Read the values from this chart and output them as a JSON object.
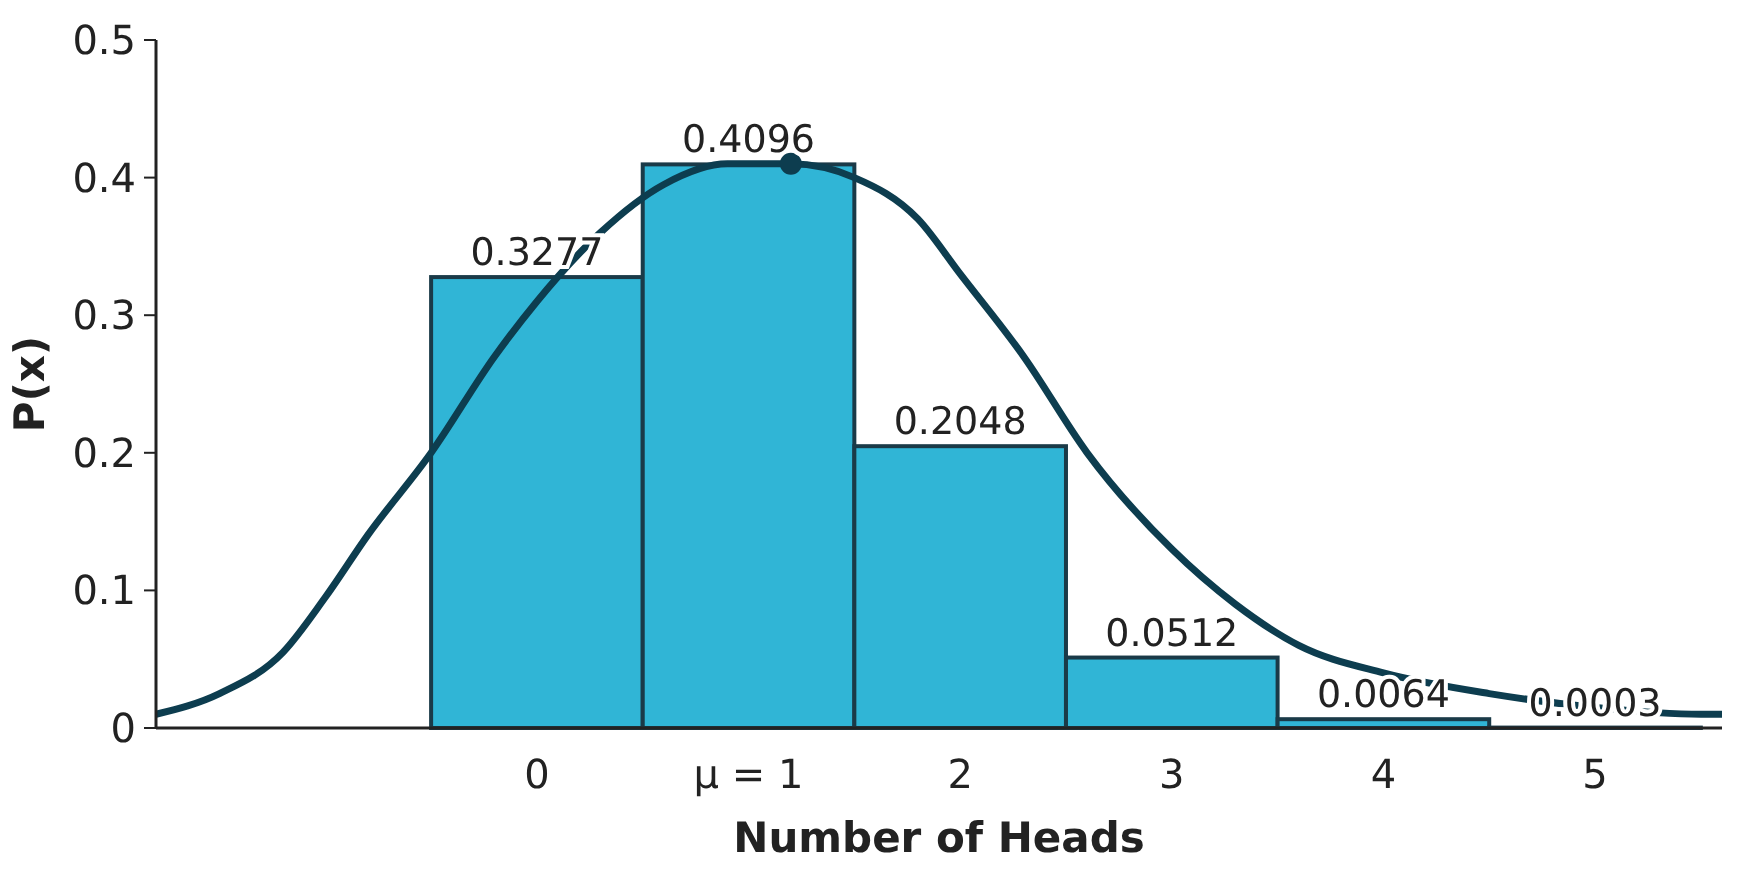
{
  "chart_data": {
    "type": "histogram",
    "xlabel": "Number of Heads",
    "ylabel": "P(x)",
    "bins": [
      -0.5,
      0.5,
      1.5,
      2.5,
      3.5,
      4.5,
      5.5
    ],
    "values": [
      0.3277,
      0.4096,
      0.2048,
      0.0512,
      0.0064,
      0.0003
    ],
    "color": "#30b5d6",
    "value_labels": [
      "0.3277",
      "0.4096",
      "0.2048",
      "0.0512",
      "0.0064",
      "0.0003"
    ],
    "xlim": [
      -1.8,
      5.6
    ],
    "xticks": [
      0,
      {
        "value": 1,
        "label": "μ = 1"
      },
      2,
      3,
      4,
      5
    ],
    "ylim": [
      0,
      0.5
    ],
    "yticks": [
      0,
      0.1,
      0.2,
      0.3,
      0.4,
      0.5
    ],
    "grid": false,
    "series": [
      {
        "type": "line",
        "color": "#0d3d4f",
        "marker": "none",
        "x": [
          -1.8,
          -1.5,
          -1.2,
          -1,
          -0.8,
          -0.5,
          -0.2,
          0,
          0.3,
          0.6,
          0.9,
          1.2,
          1.5,
          1.8,
          2,
          2.3,
          2.6,
          3,
          3.3,
          3.6,
          4,
          4.5,
          5,
          5.5,
          5.6
        ],
        "values": [
          0.01,
          0.025,
          0.055,
          0.095,
          0.14,
          0.2,
          0.27,
          0.31,
          0.36,
          0.395,
          0.41,
          0.41,
          0.4,
          0.37,
          0.33,
          0.27,
          0.2,
          0.13,
          0.09,
          0.06,
          0.04,
          0.025,
          0.015,
          0.01,
          0.01
        ]
      },
      {
        "type": "scatter",
        "color": "#0d3d4f",
        "marker": "circle",
        "x": [
          1.2
        ],
        "values": [
          0.41
        ]
      }
    ]
  }
}
